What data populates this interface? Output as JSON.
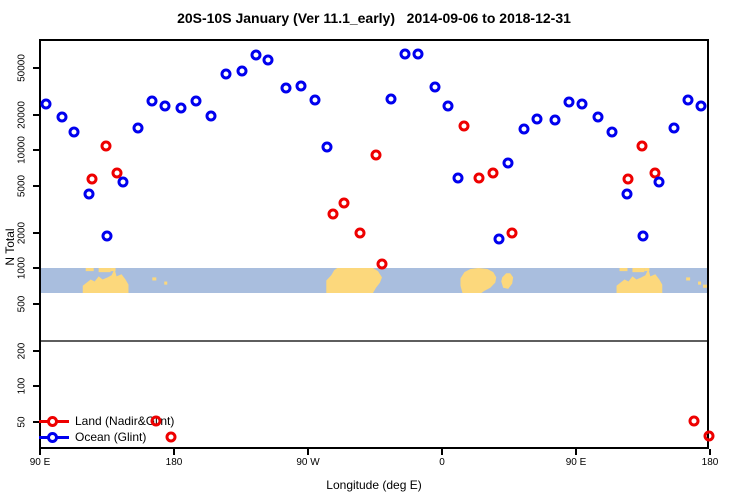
{
  "title": "20S-10S January (Ver 11.1_early)   2014-09-06 to 2018-12-31",
  "x_axis_title": "Longitude (deg E)",
  "y_axis_title": "N Total",
  "legend": {
    "position": "bottom-left inside plot",
    "items": [
      {
        "label": "Land (Nadir&Glint)",
        "color": "#ee0000"
      },
      {
        "label": "Ocean (Glint)",
        "color": "#0000ee"
      }
    ]
  },
  "chart_data": {
    "type": "scatter",
    "title": "20S-10S January (Ver 11.1_early)   2014-09-06 to 2018-12-31",
    "xlabel": "Longitude (deg E)",
    "ylabel": "N Total",
    "x_axis": {
      "min": 90,
      "max": 540,
      "ticks": [
        90,
        180,
        270,
        360,
        450,
        540
      ],
      "tick_labels": [
        "90 E",
        "180",
        "90 W",
        "0",
        "90 E",
        "180"
      ],
      "note": "longitude axis spans 450 deg starting at 90E; data repeats with 360 deg wrap"
    },
    "y_axis": {
      "scale": "log10",
      "min": 30,
      "max": 80000,
      "ticks": [
        50,
        100,
        200,
        500,
        1000,
        2000,
        5000,
        10000,
        20000,
        50000
      ],
      "tick_labels": [
        "50",
        "100",
        "200",
        "500",
        "1000",
        "2000",
        "5000",
        "10000",
        "20000",
        "50000"
      ]
    },
    "grid": false,
    "reference_line": {
      "n": 240,
      "color": "#5e5e5e"
    },
    "map_band": {
      "description": "world-map strip of the 20S-10S latitude band drawn across the plot",
      "n_top": 1000,
      "n_bottom": 620,
      "ocean_color": "#a9bede",
      "land_color": "#fcd87c",
      "regions": [
        "Australia",
        "Indonesia/New Guinea islands",
        "Pacific islands",
        "South America",
        "Africa",
        "Madagascar",
        "Australia (wrapped)"
      ]
    },
    "series": [
      {
        "name": "Land (Nadir&Glint)",
        "color": "#ee0000",
        "points": [
          [
            125,
            5700
          ],
          [
            134,
            10900
          ],
          [
            142,
            6400
          ],
          [
            168,
            51
          ],
          [
            178,
            37
          ],
          [
            287,
            2900
          ],
          [
            294,
            3600
          ],
          [
            305,
            2000
          ],
          [
            316,
            9100
          ],
          [
            320,
            1100
          ],
          [
            375,
            16100
          ],
          [
            385,
            5850
          ],
          [
            394,
            6400
          ],
          [
            407,
            2000
          ],
          [
            485,
            5700
          ],
          [
            494,
            10900
          ],
          [
            503,
            6400
          ],
          [
            529,
            51
          ],
          [
            539,
            38
          ]
        ]
      },
      {
        "name": "Ocean (Glint)",
        "color": "#0000ee",
        "points": [
          [
            94,
            25000
          ],
          [
            105,
            19200
          ],
          [
            113,
            14300
          ],
          [
            123,
            4300
          ],
          [
            135,
            1900
          ],
          [
            146,
            5400
          ],
          [
            156,
            15500
          ],
          [
            165,
            26300
          ],
          [
            174,
            23800
          ],
          [
            185,
            22900
          ],
          [
            195,
            26300
          ],
          [
            205,
            19600
          ],
          [
            215,
            44500
          ],
          [
            226,
            47000
          ],
          [
            235,
            64000
          ],
          [
            243,
            58000
          ],
          [
            255,
            33800
          ],
          [
            265,
            35200
          ],
          [
            275,
            26800
          ],
          [
            283,
            10700
          ],
          [
            326,
            27300
          ],
          [
            335,
            65700
          ],
          [
            344,
            65700
          ],
          [
            355,
            34500
          ],
          [
            364,
            23800
          ],
          [
            371,
            5850
          ],
          [
            398,
            1780
          ],
          [
            404,
            7800
          ],
          [
            415,
            15200
          ],
          [
            424,
            18500
          ],
          [
            436,
            18100
          ],
          [
            445,
            25800
          ],
          [
            454,
            25000
          ],
          [
            465,
            19200
          ],
          [
            474,
            14300
          ],
          [
            484,
            4300
          ],
          [
            495,
            1900
          ],
          [
            506,
            5400
          ],
          [
            516,
            15500
          ],
          [
            525,
            26800
          ],
          [
            534,
            23800
          ]
        ]
      }
    ]
  }
}
